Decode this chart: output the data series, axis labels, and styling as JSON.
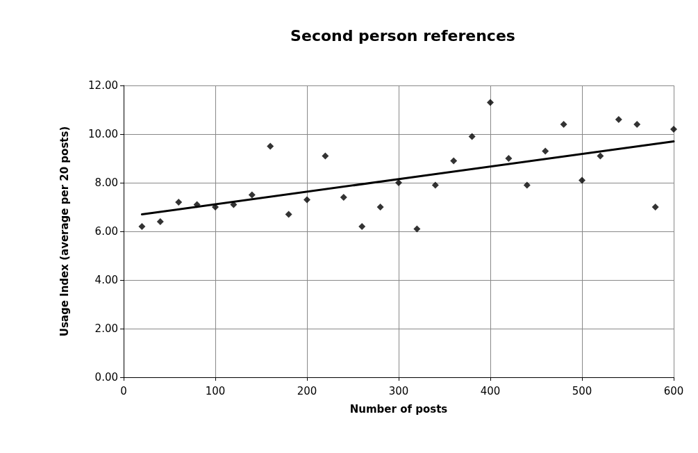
{
  "chart_data": {
    "type": "scatter",
    "title": "Second person references",
    "xlabel": "Number of posts",
    "ylabel": "Usage Index (average per 20 posts)",
    "x": [
      20,
      40,
      60,
      80,
      100,
      120,
      140,
      160,
      180,
      200,
      220,
      240,
      260,
      280,
      300,
      320,
      340,
      360,
      380,
      400,
      420,
      440,
      460,
      480,
      500,
      520,
      540,
      560,
      580,
      600
    ],
    "series": [
      {
        "color": "#000000",
        "marker": "diamond",
        "values": [
          6.2,
          6.4,
          7.2,
          7.1,
          7.0,
          7.1,
          7.5,
          9.5,
          6.7,
          7.3,
          9.1,
          7.4,
          6.2,
          7.0,
          8.0,
          6.1,
          7.9,
          8.9,
          9.9,
          11.3,
          9.0,
          7.9,
          9.3,
          10.4,
          8.1,
          9.1,
          10.6,
          10.4,
          7.0,
          10.2
        ]
      },
      {
        "type": "line",
        "color": "#000000",
        "marker": "none",
        "x": [
          20,
          600
        ],
        "values": [
          6.7,
          9.7
        ]
      }
    ],
    "xlim": [
      0,
      600
    ],
    "xticks": [
      0,
      100,
      200,
      300,
      400,
      500,
      600
    ],
    "ylim": [
      0,
      12
    ],
    "yticks": [
      {
        "value": 0,
        "label": "0.00"
      },
      {
        "value": 2,
        "label": "2.00"
      },
      {
        "value": 4,
        "label": "4.00"
      },
      {
        "value": 6,
        "label": "6.00"
      },
      {
        "value": 8,
        "label": "8.00"
      },
      {
        "value": 10,
        "label": "10.00"
      },
      {
        "value": 12,
        "label": "12.00"
      }
    ],
    "grid": true
  }
}
